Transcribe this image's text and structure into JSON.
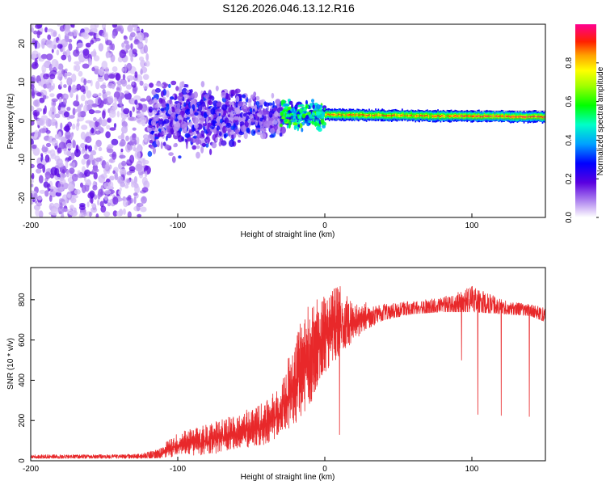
{
  "title": "S126.2026.046.13.12.R16",
  "chart_data": [
    {
      "type": "heatmap",
      "title": "S126.2026.046.13.12.R16",
      "xlabel": "Height of straight line (km)",
      "ylabel": "Frequency (Hz)",
      "xlim": [
        -200,
        150
      ],
      "ylim": [
        -25,
        25
      ],
      "xticks": [
        -200,
        -100,
        0,
        100
      ],
      "yticks": [
        -20,
        -10,
        0,
        10,
        20
      ],
      "colorbar": {
        "label": "Normalized spectral amplitude",
        "range": [
          0,
          1
        ],
        "ticks": [
          0.0,
          0.2,
          0.4,
          0.6,
          0.8
        ],
        "colormap": "rainbow (white-violet-blue-cyan-green-yellow-orange-red-magenta)"
      },
      "regions": [
        {
          "x_range": [
            -200,
            -120
          ],
          "freq_spread_hz": 25,
          "amplitude": "low (0.0-0.2)",
          "description": "scattered noise"
        },
        {
          "x_range": [
            -120,
            -30
          ],
          "freq_spread_hz": 12,
          "amplitude": "low-medium (0.1-0.3)",
          "description": "converging signal"
        },
        {
          "x_range": [
            -30,
            0
          ],
          "freq_spread_hz": 4,
          "amplitude": "medium-high",
          "description": "transition"
        },
        {
          "x_range": [
            0,
            150
          ],
          "center_hz": 1.5,
          "band_width_hz": 1.5,
          "amplitude": "high (0.4-0.95)",
          "description": "narrow constant-frequency band"
        }
      ]
    },
    {
      "type": "line",
      "xlabel": "Height of straight line (km)",
      "ylabel": "SNR (10 * v/v)",
      "xlim": [
        -200,
        150
      ],
      "ylim": [
        0,
        960
      ],
      "xticks": [
        -200,
        -100,
        0,
        100
      ],
      "yticks": [
        0,
        200,
        400,
        600,
        800
      ],
      "color": "#e8282a",
      "envelope": {
        "x": [
          -200,
          -150,
          -125,
          -110,
          -100,
          -80,
          -60,
          -40,
          -30,
          -20,
          -10,
          0,
          10,
          20,
          30,
          40,
          60,
          80,
          100,
          120,
          140,
          150
        ],
        "min": [
          12,
          12,
          12,
          15,
          20,
          30,
          50,
          80,
          130,
          180,
          280,
          430,
          520,
          600,
          660,
          700,
          730,
          740,
          740,
          730,
          720,
          690
        ],
        "max": [
          35,
          35,
          40,
          80,
          140,
          180,
          230,
          300,
          400,
          620,
          800,
          820,
          880,
          780,
          790,
          800,
          810,
          830,
          900,
          820,
          790,
          780
        ]
      },
      "dips": [
        {
          "x": 10,
          "y": 130
        },
        {
          "x": 93,
          "y": 500
        },
        {
          "x": 104,
          "y": 230
        },
        {
          "x": 120,
          "y": 225
        },
        {
          "x": 139,
          "y": 220
        }
      ]
    }
  ]
}
